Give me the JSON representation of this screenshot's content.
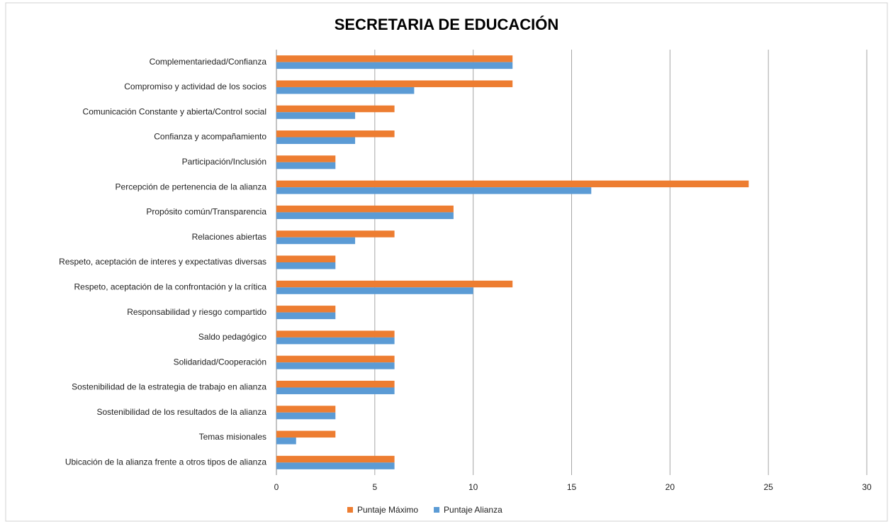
{
  "chart_data": {
    "type": "bar",
    "orientation": "horizontal",
    "title": "SECRETARIA DE EDUCACIÓN",
    "categories": [
      "Complementariedad/Confianza",
      "Compromiso y actividad de los socios",
      "Comunicación Constante y abierta/Control social",
      "Confianza y acompañamiento",
      "Participación/Inclusión",
      "Percepción de pertenencia de la alianza",
      "Propósito común/Transparencia",
      "Relaciones abiertas",
      "Respeto, aceptación de interes y expectativas diversas",
      "Respeto, aceptación de la confrontación y la crítica",
      "Responsabilidad y riesgo compartido",
      "Saldo pedagógico",
      "Solidaridad/Cooperación",
      "Sostenibilidad de la estrategia de trabajo en alianza",
      "Sostenibilidad de los resultados de la alianza",
      "Temas misionales",
      "Ubicación de la alianza frente a otros tipos de alianza"
    ],
    "series": [
      {
        "name": "Puntaje Máximo",
        "color": "#ED7D31",
        "values": [
          12,
          12,
          6,
          6,
          3,
          24,
          9,
          6,
          3,
          12,
          3,
          6,
          6,
          6,
          3,
          3,
          6
        ]
      },
      {
        "name": "Puntaje Alianza",
        "color": "#5B9BD5",
        "values": [
          12,
          7,
          4,
          4,
          3,
          16,
          9,
          4,
          3,
          10,
          3,
          6,
          6,
          6,
          3,
          1,
          6
        ]
      }
    ],
    "xlim": [
      0,
      30
    ],
    "xticks": [
      0,
      5,
      10,
      15,
      20,
      25,
      30
    ],
    "grid": true,
    "legend": "bottom"
  }
}
